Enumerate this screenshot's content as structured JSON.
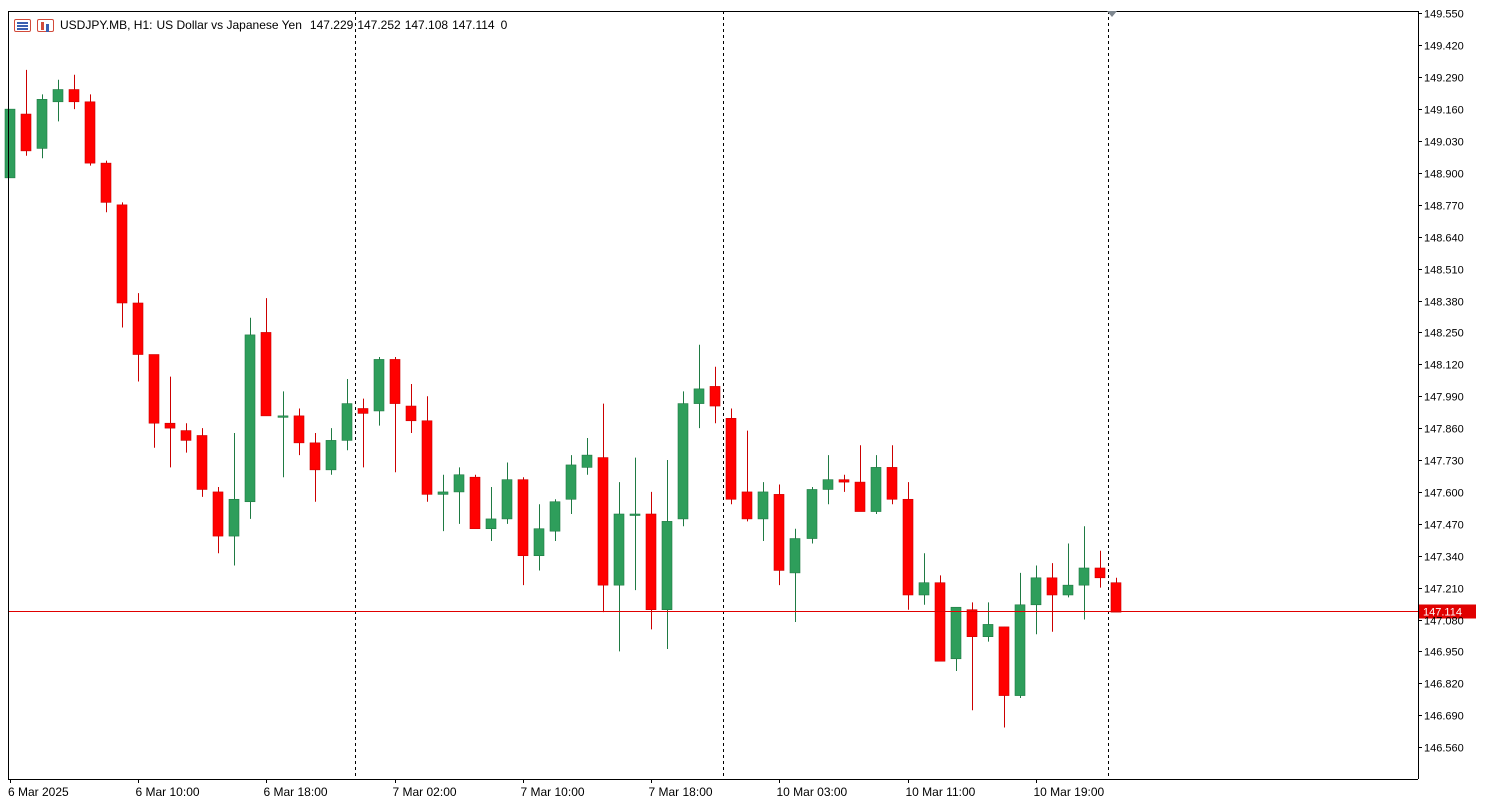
{
  "header": {
    "symbol": "USDJPY.MB, H1:",
    "description": "US Dollar vs Japanese Yen",
    "open": "147.229",
    "high": "147.252",
    "low": "147.108",
    "close": "147.114",
    "volume": "0",
    "icon_left": "chart-list-icon",
    "icon_right": "chart-bars-icon"
  },
  "colors": {
    "bull": "#2e9e5b",
    "bear": "#ff0000",
    "wick_bull": "#1f7a43",
    "wick_bear": "#cc0000",
    "price_line": "#e00000",
    "separator": "#000000",
    "axis": "#000000"
  },
  "chart_data": {
    "type": "candlestick",
    "current_price": 147.114,
    "current_price_label": "147.114",
    "ylim": [
      146.43,
      149.56
    ],
    "yticks": [
      "149.550",
      "149.420",
      "149.290",
      "149.160",
      "149.030",
      "148.900",
      "148.770",
      "148.640",
      "148.510",
      "148.380",
      "148.250",
      "148.120",
      "147.990",
      "147.860",
      "147.730",
      "147.600",
      "147.470",
      "147.340",
      "147.210",
      "147.080",
      "146.950",
      "146.820",
      "146.690",
      "146.560"
    ],
    "xlabels": [
      {
        "index": 0,
        "text": "6 Mar 2025"
      },
      {
        "index": 8,
        "text": "6 Mar 10:00"
      },
      {
        "index": 16,
        "text": "6 Mar 18:00"
      },
      {
        "index": 24,
        "text": "7 Mar 02:00"
      },
      {
        "index": 32,
        "text": "7 Mar 10:00"
      },
      {
        "index": 40,
        "text": "7 Mar 18:00"
      },
      {
        "index": 48,
        "text": "10 Mar 03:00"
      },
      {
        "index": 56,
        "text": "10 Mar 11:00"
      },
      {
        "index": 64,
        "text": "10 Mar 19:00"
      }
    ],
    "day_separators": [
      21.5,
      44.5,
      68.5
    ],
    "candles": [
      {
        "o": 148.88,
        "h": 149.16,
        "l": 148.88,
        "c": 149.16
      },
      {
        "o": 149.14,
        "h": 149.32,
        "l": 148.97,
        "c": 148.99
      },
      {
        "o": 149.0,
        "h": 149.22,
        "l": 148.96,
        "c": 149.2
      },
      {
        "o": 149.19,
        "h": 149.28,
        "l": 149.11,
        "c": 149.24
      },
      {
        "o": 149.24,
        "h": 149.3,
        "l": 149.16,
        "c": 149.19
      },
      {
        "o": 149.19,
        "h": 149.22,
        "l": 148.93,
        "c": 148.94
      },
      {
        "o": 148.94,
        "h": 148.95,
        "l": 148.74,
        "c": 148.78
      },
      {
        "o": 148.77,
        "h": 148.78,
        "l": 148.27,
        "c": 148.37
      },
      {
        "o": 148.37,
        "h": 148.41,
        "l": 148.05,
        "c": 148.16
      },
      {
        "o": 148.16,
        "h": 148.16,
        "l": 147.78,
        "c": 147.88
      },
      {
        "o": 147.88,
        "h": 148.07,
        "l": 147.7,
        "c": 147.86
      },
      {
        "o": 147.85,
        "h": 147.88,
        "l": 147.76,
        "c": 147.81
      },
      {
        "o": 147.83,
        "h": 147.86,
        "l": 147.58,
        "c": 147.61
      },
      {
        "o": 147.6,
        "h": 147.62,
        "l": 147.35,
        "c": 147.42
      },
      {
        "o": 147.42,
        "h": 147.84,
        "l": 147.3,
        "c": 147.57
      },
      {
        "o": 147.56,
        "h": 148.31,
        "l": 147.49,
        "c": 148.24
      },
      {
        "o": 148.25,
        "h": 148.39,
        "l": 147.91,
        "c": 147.91
      },
      {
        "o": 147.91,
        "h": 148.01,
        "l": 147.66,
        "c": 147.91
      },
      {
        "o": 147.91,
        "h": 147.94,
        "l": 147.75,
        "c": 147.8
      },
      {
        "o": 147.8,
        "h": 147.84,
        "l": 147.56,
        "c": 147.69
      },
      {
        "o": 147.69,
        "h": 147.86,
        "l": 147.67,
        "c": 147.81
      },
      {
        "o": 147.81,
        "h": 148.06,
        "l": 147.77,
        "c": 147.96
      },
      {
        "o": 147.94,
        "h": 147.98,
        "l": 147.7,
        "c": 147.92
      },
      {
        "o": 147.93,
        "h": 148.15,
        "l": 147.87,
        "c": 148.14
      },
      {
        "o": 148.14,
        "h": 148.15,
        "l": 147.68,
        "c": 147.96
      },
      {
        "o": 147.95,
        "h": 148.04,
        "l": 147.84,
        "c": 147.89
      },
      {
        "o": 147.89,
        "h": 147.99,
        "l": 147.56,
        "c": 147.59
      },
      {
        "o": 147.59,
        "h": 147.67,
        "l": 147.44,
        "c": 147.6
      },
      {
        "o": 147.6,
        "h": 147.7,
        "l": 147.47,
        "c": 147.67
      },
      {
        "o": 147.66,
        "h": 147.67,
        "l": 147.45,
        "c": 147.45
      },
      {
        "o": 147.45,
        "h": 147.62,
        "l": 147.4,
        "c": 147.49
      },
      {
        "o": 147.49,
        "h": 147.72,
        "l": 147.47,
        "c": 147.65
      },
      {
        "o": 147.65,
        "h": 147.66,
        "l": 147.22,
        "c": 147.34
      },
      {
        "o": 147.34,
        "h": 147.55,
        "l": 147.28,
        "c": 147.45
      },
      {
        "o": 147.44,
        "h": 147.57,
        "l": 147.4,
        "c": 147.56
      },
      {
        "o": 147.57,
        "h": 147.75,
        "l": 147.51,
        "c": 147.71
      },
      {
        "o": 147.7,
        "h": 147.82,
        "l": 147.67,
        "c": 147.75
      },
      {
        "o": 147.74,
        "h": 147.96,
        "l": 147.11,
        "c": 147.22
      },
      {
        "o": 147.22,
        "h": 147.64,
        "l": 146.95,
        "c": 147.51
      },
      {
        "o": 147.51,
        "h": 147.74,
        "l": 147.2,
        "c": 147.51
      },
      {
        "o": 147.51,
        "h": 147.6,
        "l": 147.04,
        "c": 147.12
      },
      {
        "o": 147.12,
        "h": 147.73,
        "l": 146.96,
        "c": 147.48
      },
      {
        "o": 147.49,
        "h": 148.01,
        "l": 147.46,
        "c": 147.96
      },
      {
        "o": 147.96,
        "h": 148.2,
        "l": 147.86,
        "c": 148.02
      },
      {
        "o": 148.03,
        "h": 148.11,
        "l": 147.88,
        "c": 147.95
      },
      {
        "o": 147.9,
        "h": 147.94,
        "l": 147.55,
        "c": 147.57
      },
      {
        "o": 147.6,
        "h": 147.85,
        "l": 147.48,
        "c": 147.49
      },
      {
        "o": 147.49,
        "h": 147.64,
        "l": 147.4,
        "c": 147.6
      },
      {
        "o": 147.59,
        "h": 147.63,
        "l": 147.22,
        "c": 147.28
      },
      {
        "o": 147.27,
        "h": 147.45,
        "l": 147.07,
        "c": 147.41
      },
      {
        "o": 147.41,
        "h": 147.62,
        "l": 147.39,
        "c": 147.61
      },
      {
        "o": 147.61,
        "h": 147.75,
        "l": 147.55,
        "c": 147.65
      },
      {
        "o": 147.65,
        "h": 147.67,
        "l": 147.6,
        "c": 147.64
      },
      {
        "o": 147.64,
        "h": 147.79,
        "l": 147.52,
        "c": 147.52
      },
      {
        "o": 147.52,
        "h": 147.75,
        "l": 147.51,
        "c": 147.7
      },
      {
        "o": 147.7,
        "h": 147.79,
        "l": 147.55,
        "c": 147.57
      },
      {
        "o": 147.57,
        "h": 147.64,
        "l": 147.12,
        "c": 147.18
      },
      {
        "o": 147.18,
        "h": 147.35,
        "l": 147.14,
        "c": 147.23
      },
      {
        "o": 147.23,
        "h": 147.26,
        "l": 146.91,
        "c": 146.91
      },
      {
        "o": 146.92,
        "h": 147.13,
        "l": 146.87,
        "c": 147.13
      },
      {
        "o": 147.12,
        "h": 147.15,
        "l": 146.71,
        "c": 147.01
      },
      {
        "o": 147.01,
        "h": 147.15,
        "l": 146.99,
        "c": 147.06
      },
      {
        "o": 147.05,
        "h": 147.05,
        "l": 146.64,
        "c": 146.77
      },
      {
        "o": 146.77,
        "h": 147.27,
        "l": 146.76,
        "c": 147.14
      },
      {
        "o": 147.14,
        "h": 147.3,
        "l": 147.02,
        "c": 147.25
      },
      {
        "o": 147.25,
        "h": 147.31,
        "l": 147.03,
        "c": 147.18
      },
      {
        "o": 147.18,
        "h": 147.39,
        "l": 147.17,
        "c": 147.22
      },
      {
        "o": 147.22,
        "h": 147.46,
        "l": 147.08,
        "c": 147.29
      },
      {
        "o": 147.29,
        "h": 147.36,
        "l": 147.21,
        "c": 147.25
      },
      {
        "o": 147.23,
        "h": 147.25,
        "l": 147.11,
        "c": 147.11
      }
    ]
  }
}
